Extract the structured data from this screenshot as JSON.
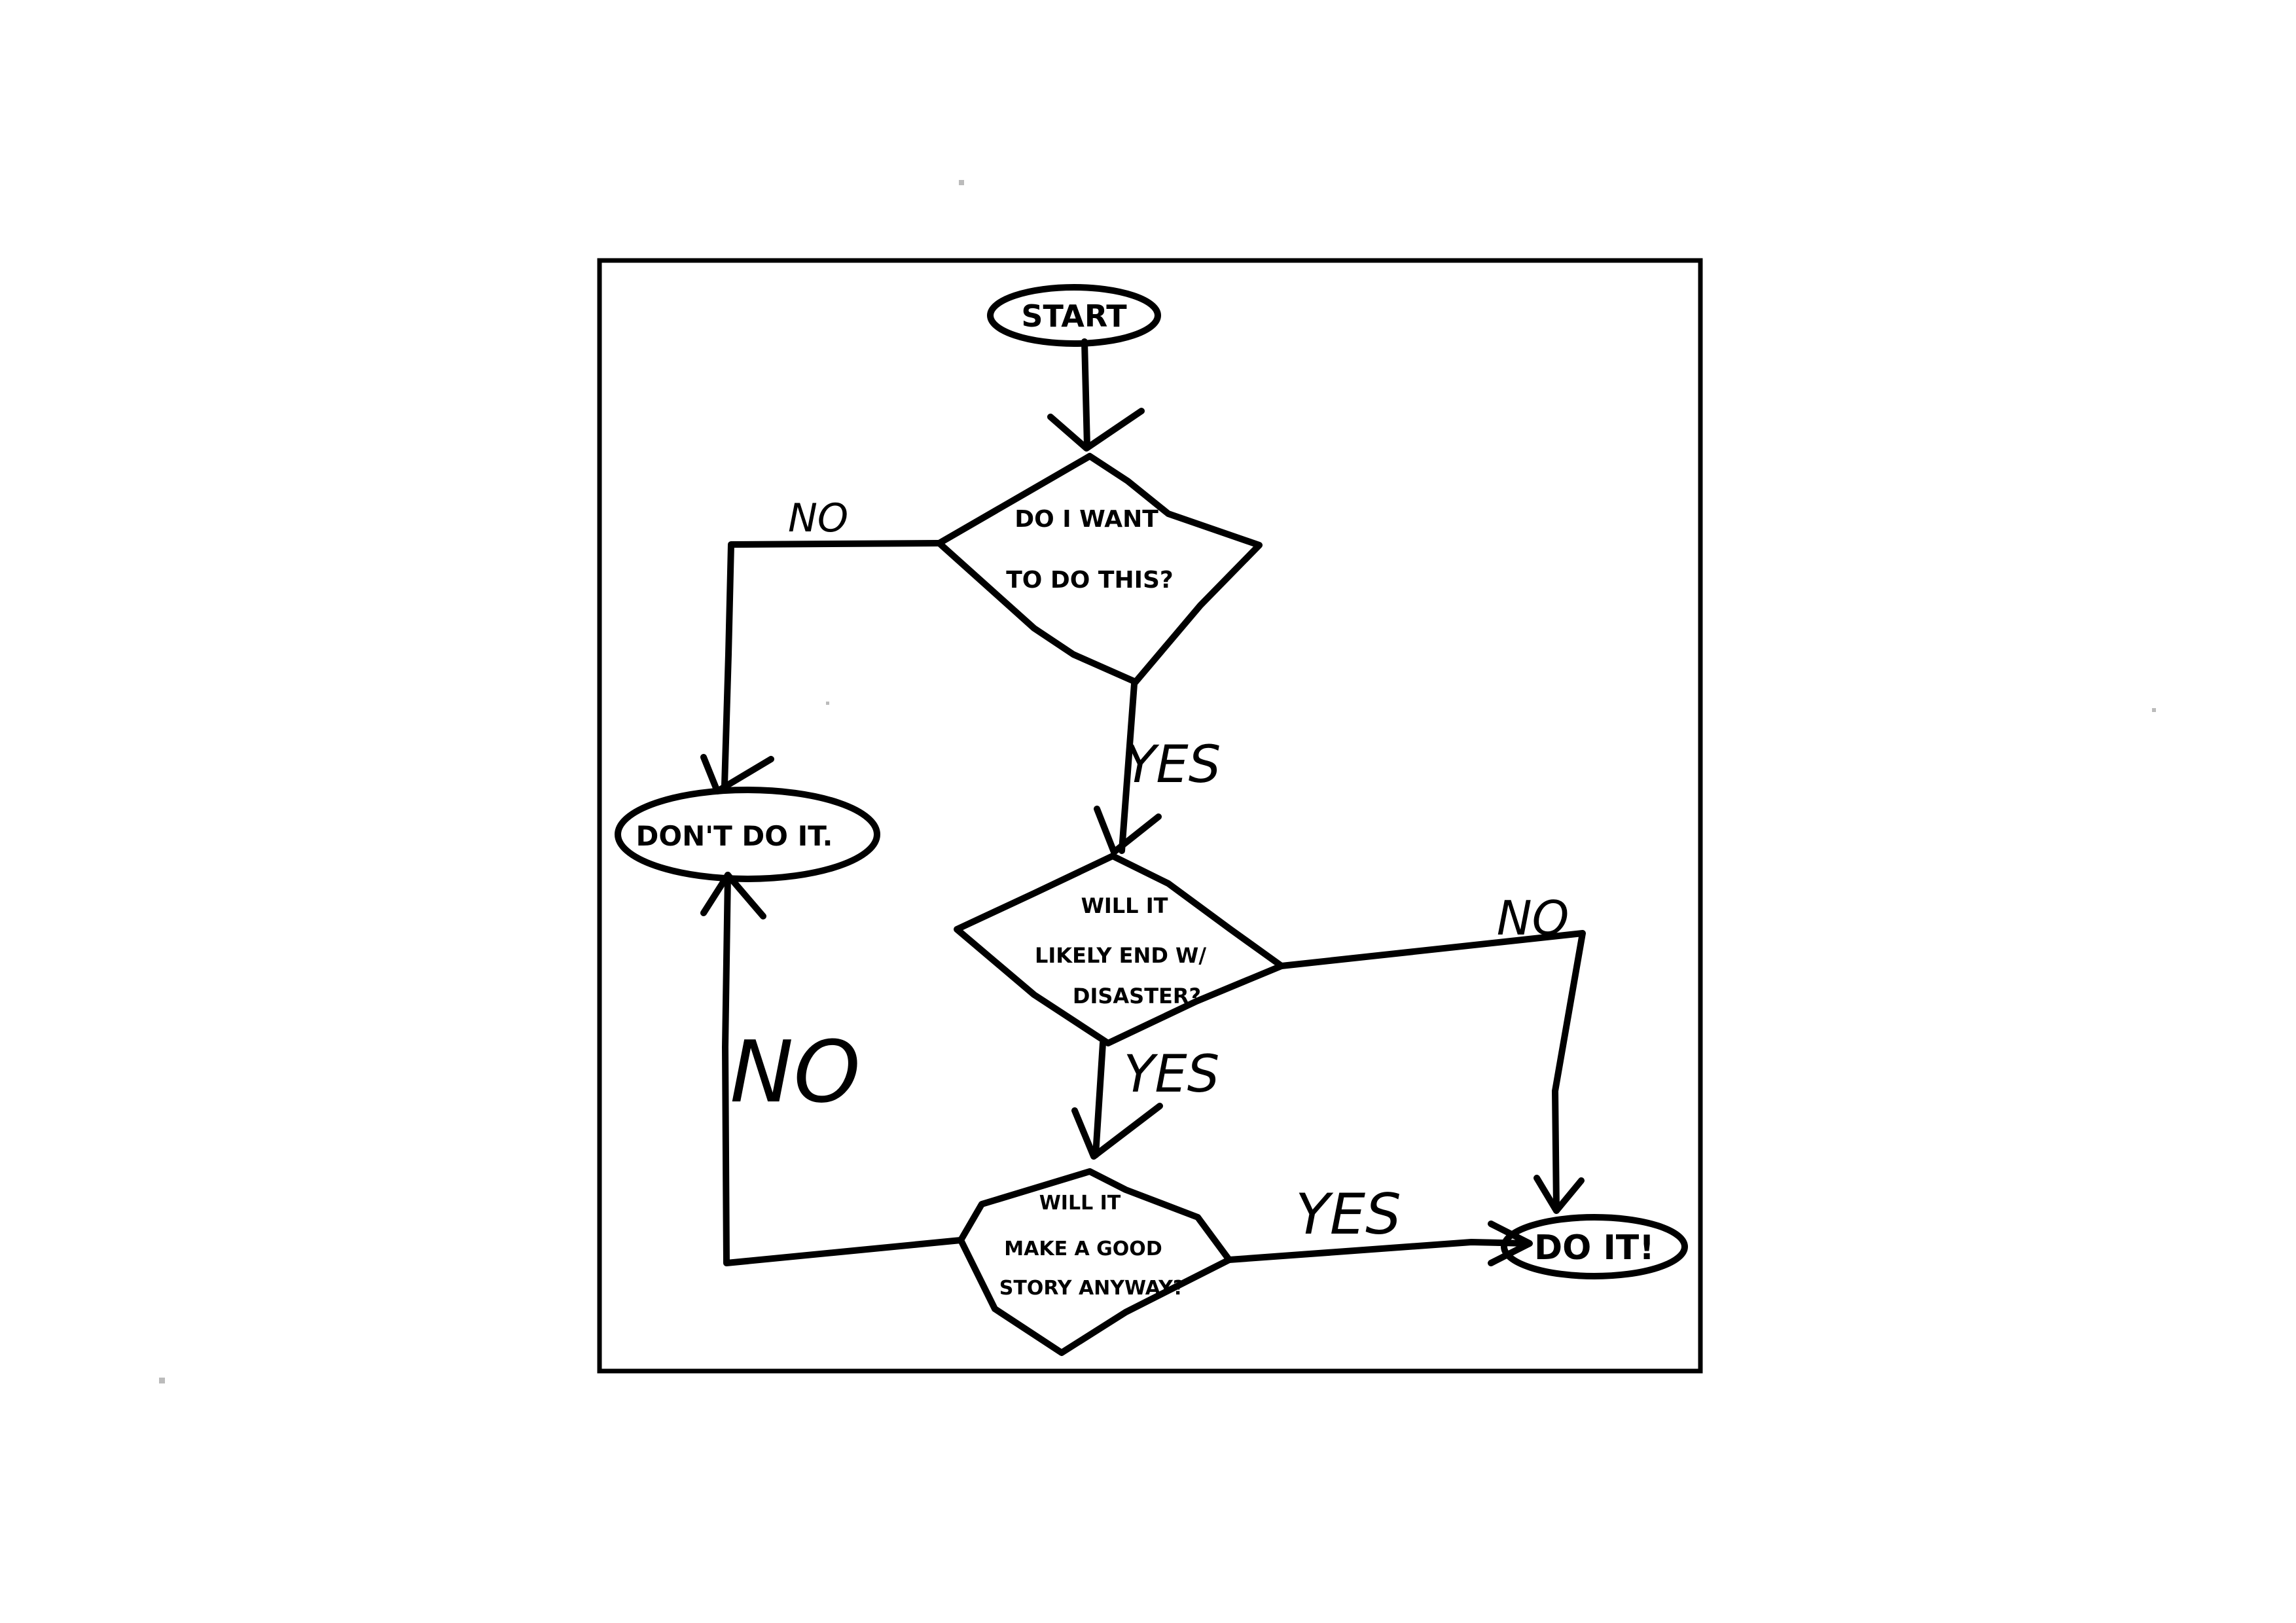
{
  "nodes": {
    "start": {
      "label": "START"
    },
    "want": {
      "lines": [
        "DO I WANT",
        "TO DO THIS?"
      ]
    },
    "disaster": {
      "lines": [
        "WILL IT",
        "LIKELY END W/",
        "DISASTER?"
      ]
    },
    "story": {
      "lines": [
        "WILL IT",
        "MAKE A GOOD",
        "STORY ANYWAY?"
      ]
    },
    "dont": {
      "label": "DON'T DO IT."
    },
    "do": {
      "label": "DO IT!"
    }
  },
  "edges": {
    "want_no": "NO",
    "want_yes": "YES",
    "disaster_no": "NO",
    "disaster_yes": "YES",
    "story_no": "NO",
    "story_yes": "YES"
  },
  "colors": {
    "ink": "#000000",
    "paper": "#ffffff"
  }
}
